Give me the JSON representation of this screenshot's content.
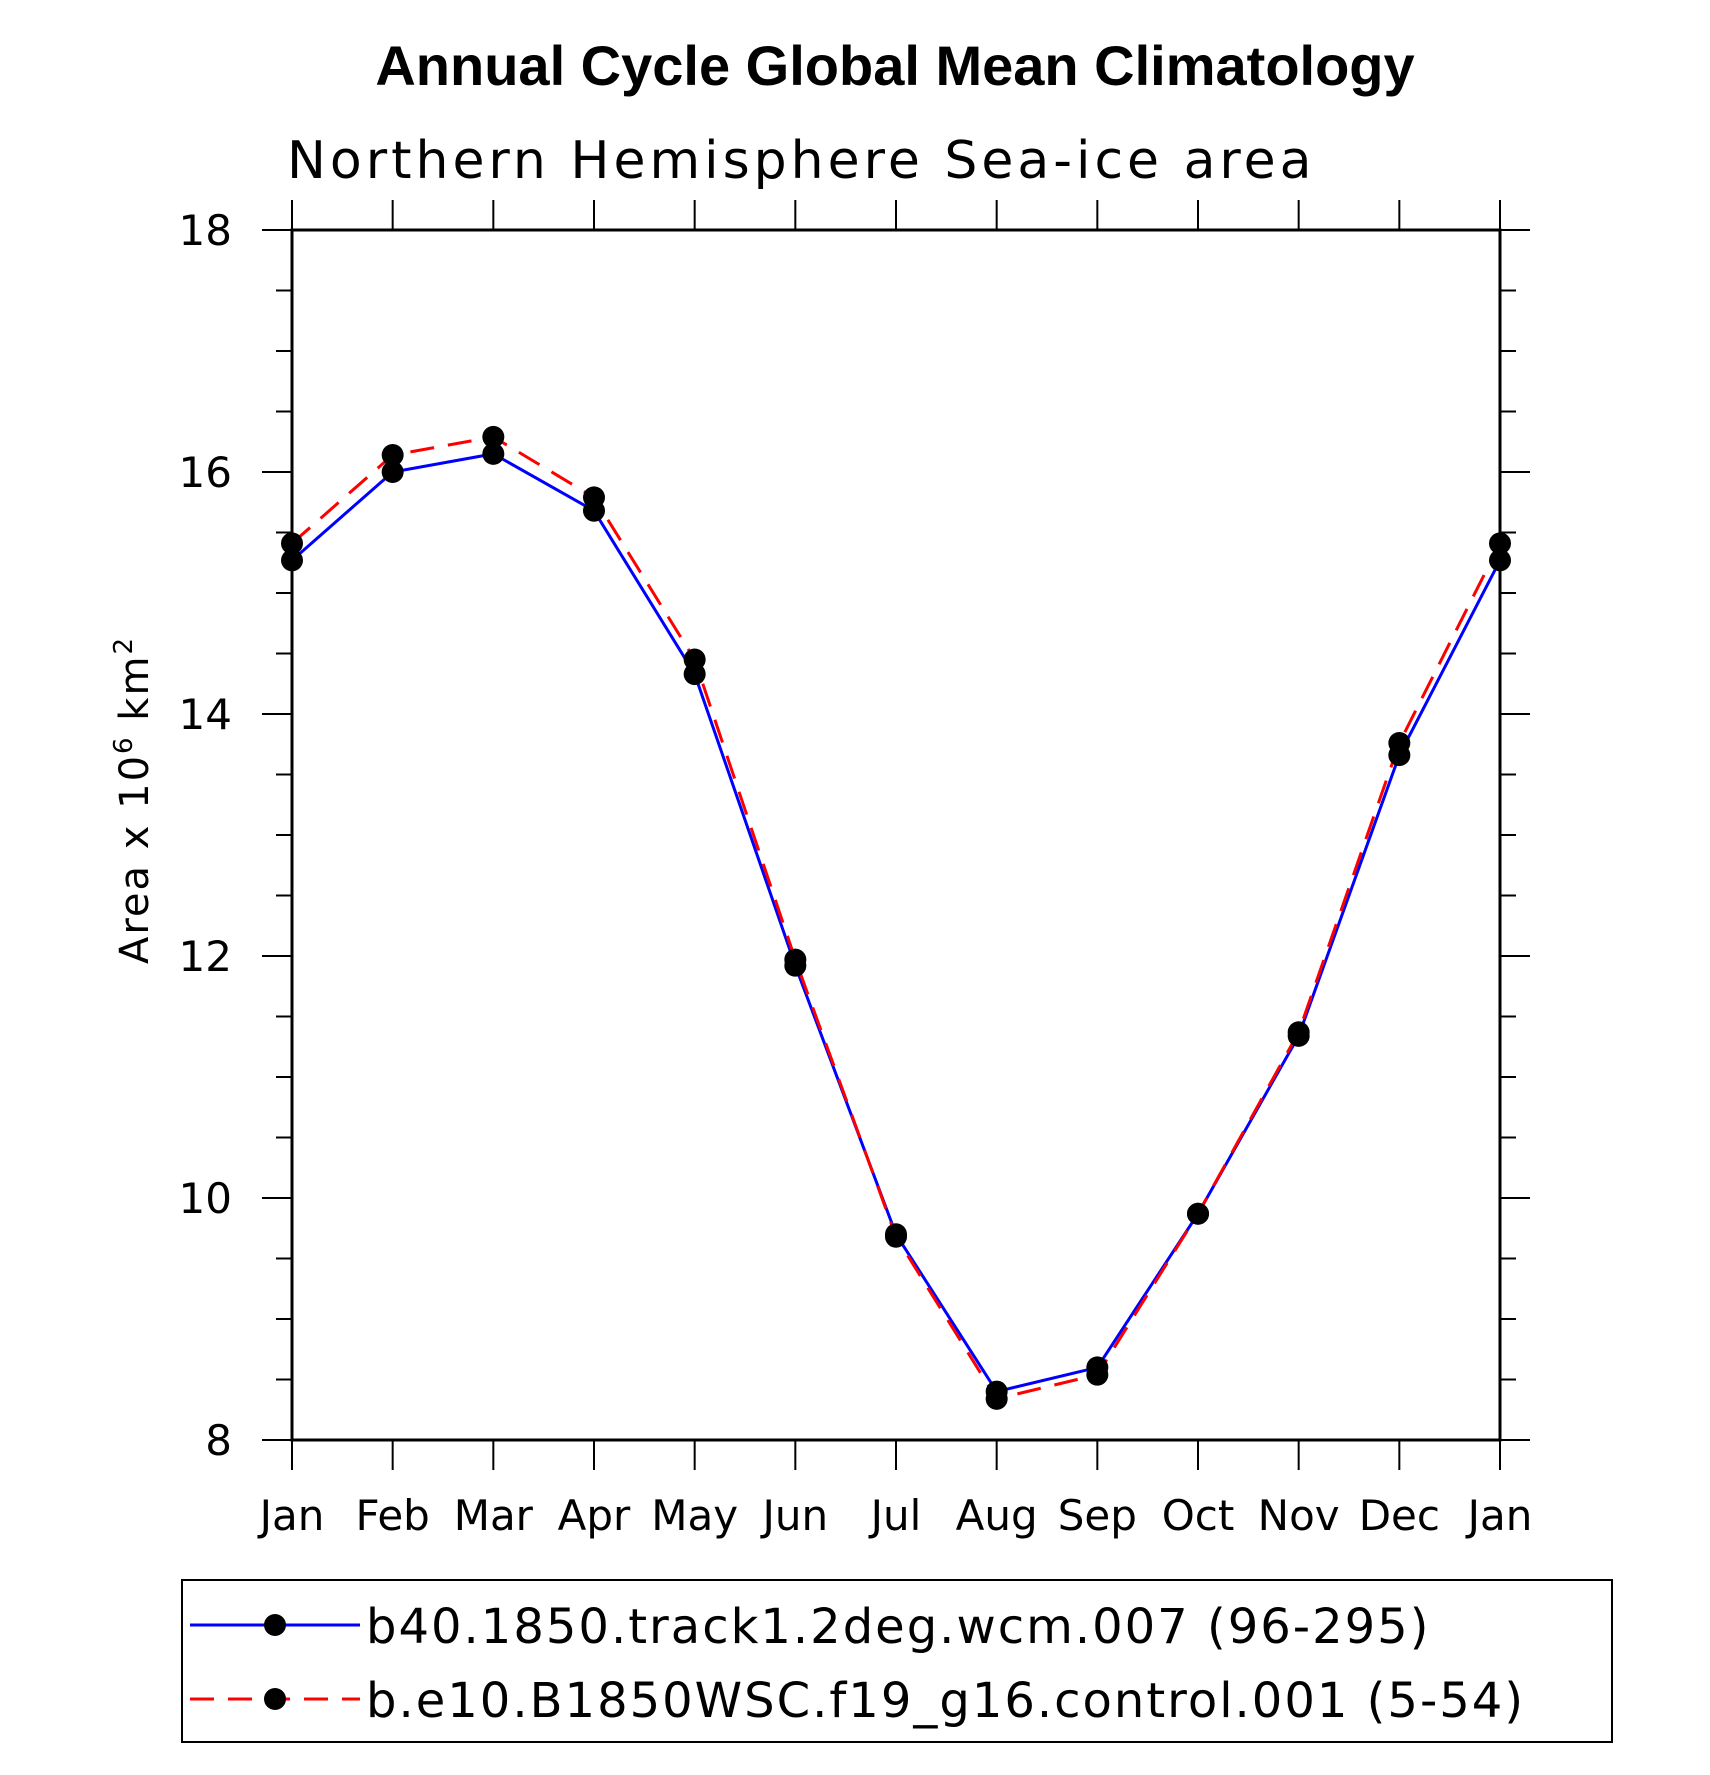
{
  "chart_data": {
    "type": "line",
    "title": "Annual Cycle Global Mean Climatology",
    "subtitle": "Northern Hemisphere Sea-ice area",
    "ylabel": "Area x 10",
    "ylabel_sup": "6",
    "ylabel_unit": "km",
    "ylabel_unit_sup": "2",
    "categories": [
      "Jan",
      "Feb",
      "Mar",
      "Apr",
      "May",
      "Jun",
      "Jul",
      "Aug",
      "Sep",
      "Oct",
      "Nov",
      "Dec",
      "Jan"
    ],
    "ylim": [
      8,
      18
    ],
    "yticks": [
      8,
      10,
      12,
      14,
      16,
      18
    ],
    "series": [
      {
        "name": "b40.1850.track1.2deg.wcm.007 (96-295)",
        "color": "#0000ff",
        "style": "solid",
        "values": [
          15.27,
          16.0,
          16.15,
          15.68,
          14.33,
          11.92,
          9.7,
          8.4,
          8.6,
          9.87,
          11.34,
          13.66,
          15.27
        ]
      },
      {
        "name": "b.e10.B1850WSC.f19_g16.control.001 (5-54)",
        "color": "#ff0000",
        "style": "dashed",
        "values": [
          15.41,
          16.14,
          16.29,
          15.79,
          14.45,
          11.97,
          9.68,
          8.34,
          8.54,
          9.87,
          11.37,
          13.76,
          15.41
        ]
      }
    ]
  }
}
